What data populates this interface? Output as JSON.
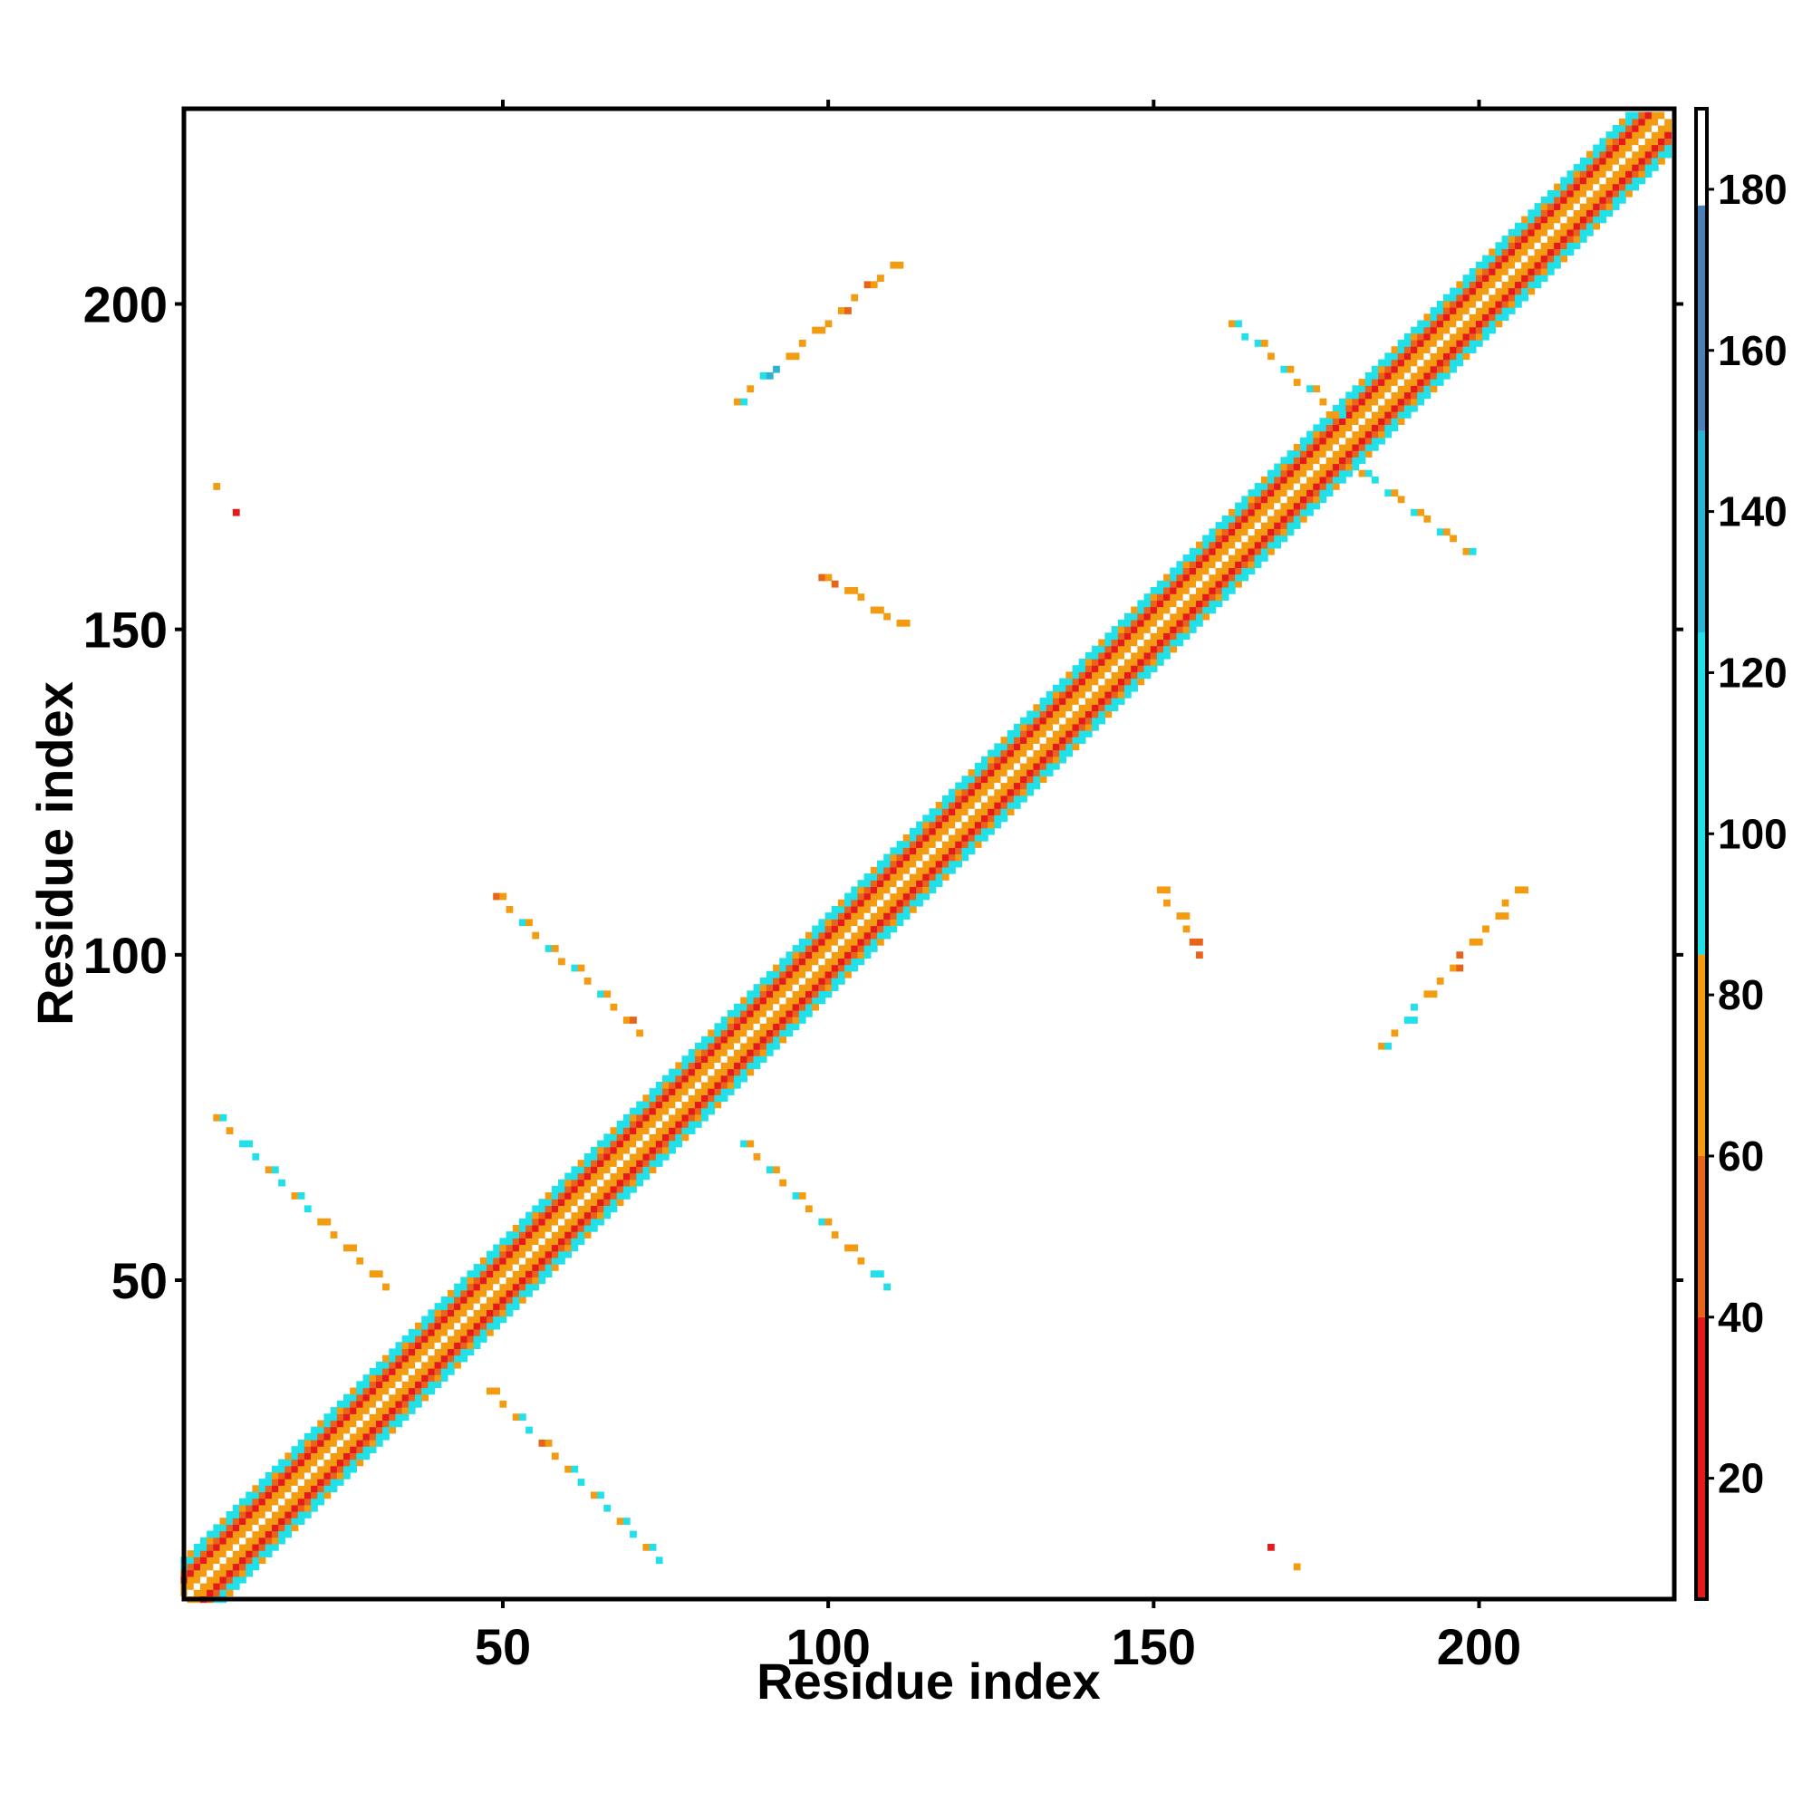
{
  "chart_data": {
    "type": "heatmap",
    "subtype": "residue contact map",
    "xlabel": "Residue index",
    "ylabel": "Residue index",
    "xlim": [
      1,
      230
    ],
    "ylim": [
      1,
      230
    ],
    "x_ticks": [
      50,
      100,
      150,
      200
    ],
    "y_ticks": [
      50,
      100,
      150,
      200
    ],
    "grid": false,
    "colorbar": {
      "location": "right",
      "range": [
        5,
        190
      ],
      "ticks": [
        20,
        40,
        60,
        80,
        100,
        120,
        140,
        160,
        180
      ],
      "bands": [
        {
          "from": 5,
          "to": 40,
          "color": "#e41a1c"
        },
        {
          "from": 40,
          "to": 60,
          "color": "#e8641a"
        },
        {
          "from": 60,
          "to": 85,
          "color": "#f39c12"
        },
        {
          "from": 85,
          "to": 125,
          "color": "#22e0e8"
        },
        {
          "from": 125,
          "to": 150,
          "color": "#2bb3d4"
        },
        {
          "from": 150,
          "to": 178,
          "color": "#4a7fb8"
        },
        {
          "from": 178,
          "to": 190,
          "color": "#ffffff"
        }
      ]
    },
    "diagonal_band": {
      "from": 1,
      "to": 229,
      "half_width": 6
    },
    "offdiagonal_segments": [
      {
        "x0": 48,
        "y0": 33,
        "x1": 75,
        "y1": 6,
        "color_values": [
          70,
          70,
          95,
          55,
          70,
          65,
          95,
          70,
          110,
          65,
          95,
          70,
          100
        ]
      },
      {
        "x0": 6,
        "y0": 75,
        "x1": 33,
        "y1": 48,
        "color_values": [
          70,
          95,
          100,
          70,
          120,
          65,
          95,
          70,
          65,
          70,
          65,
          70,
          75
        ]
      },
      {
        "x0": 49,
        "y0": 109,
        "x1": 71,
        "y1": 88,
        "color_values": [
          40,
          70,
          95,
          65,
          120,
          70,
          95,
          70,
          90,
          65,
          70
        ]
      },
      {
        "x0": 87,
        "y0": 71,
        "x1": 109,
        "y1": 49,
        "color_values": [
          120,
          70,
          95,
          65,
          95,
          70,
          110,
          65,
          70,
          75,
          100
        ]
      },
      {
        "x0": 86,
        "y0": 185,
        "x1": 111,
        "y1": 207,
        "color_values": [
          65,
          95,
          140,
          70,
          75,
          70,
          65,
          70,
          45,
          70,
          70
        ]
      },
      {
        "x0": 185,
        "y0": 86,
        "x1": 207,
        "y1": 111,
        "color_values": [
          70,
          95,
          110,
          70,
          75,
          70,
          45,
          70,
          65,
          70,
          70
        ]
      },
      {
        "x0": 162,
        "y0": 197,
        "x1": 178,
        "y1": 183,
        "color_values": [
          70,
          120,
          95,
          70,
          100,
          65,
          95,
          70
        ]
      },
      {
        "x0": 182,
        "y0": 174,
        "x1": 198,
        "y1": 162,
        "color_values": [
          70,
          95,
          110,
          70,
          100,
          65,
          95,
          70
        ]
      },
      {
        "x0": 99,
        "y0": 158,
        "x1": 111,
        "y1": 151,
        "color_values": [
          55,
          70,
          65,
          70,
          75
        ]
      },
      {
        "x0": 151,
        "y0": 110,
        "x1": 158,
        "y1": 99,
        "color_values": [
          75,
          65,
          70,
          55,
          45
        ]
      }
    ],
    "isolated_contacts": [
      {
        "x": 6,
        "y": 172,
        "value": 75
      },
      {
        "x": 9,
        "y": 168,
        "value": 30
      },
      {
        "x": 168,
        "y": 9,
        "value": 30
      },
      {
        "x": 172,
        "y": 6,
        "value": 75
      }
    ]
  }
}
